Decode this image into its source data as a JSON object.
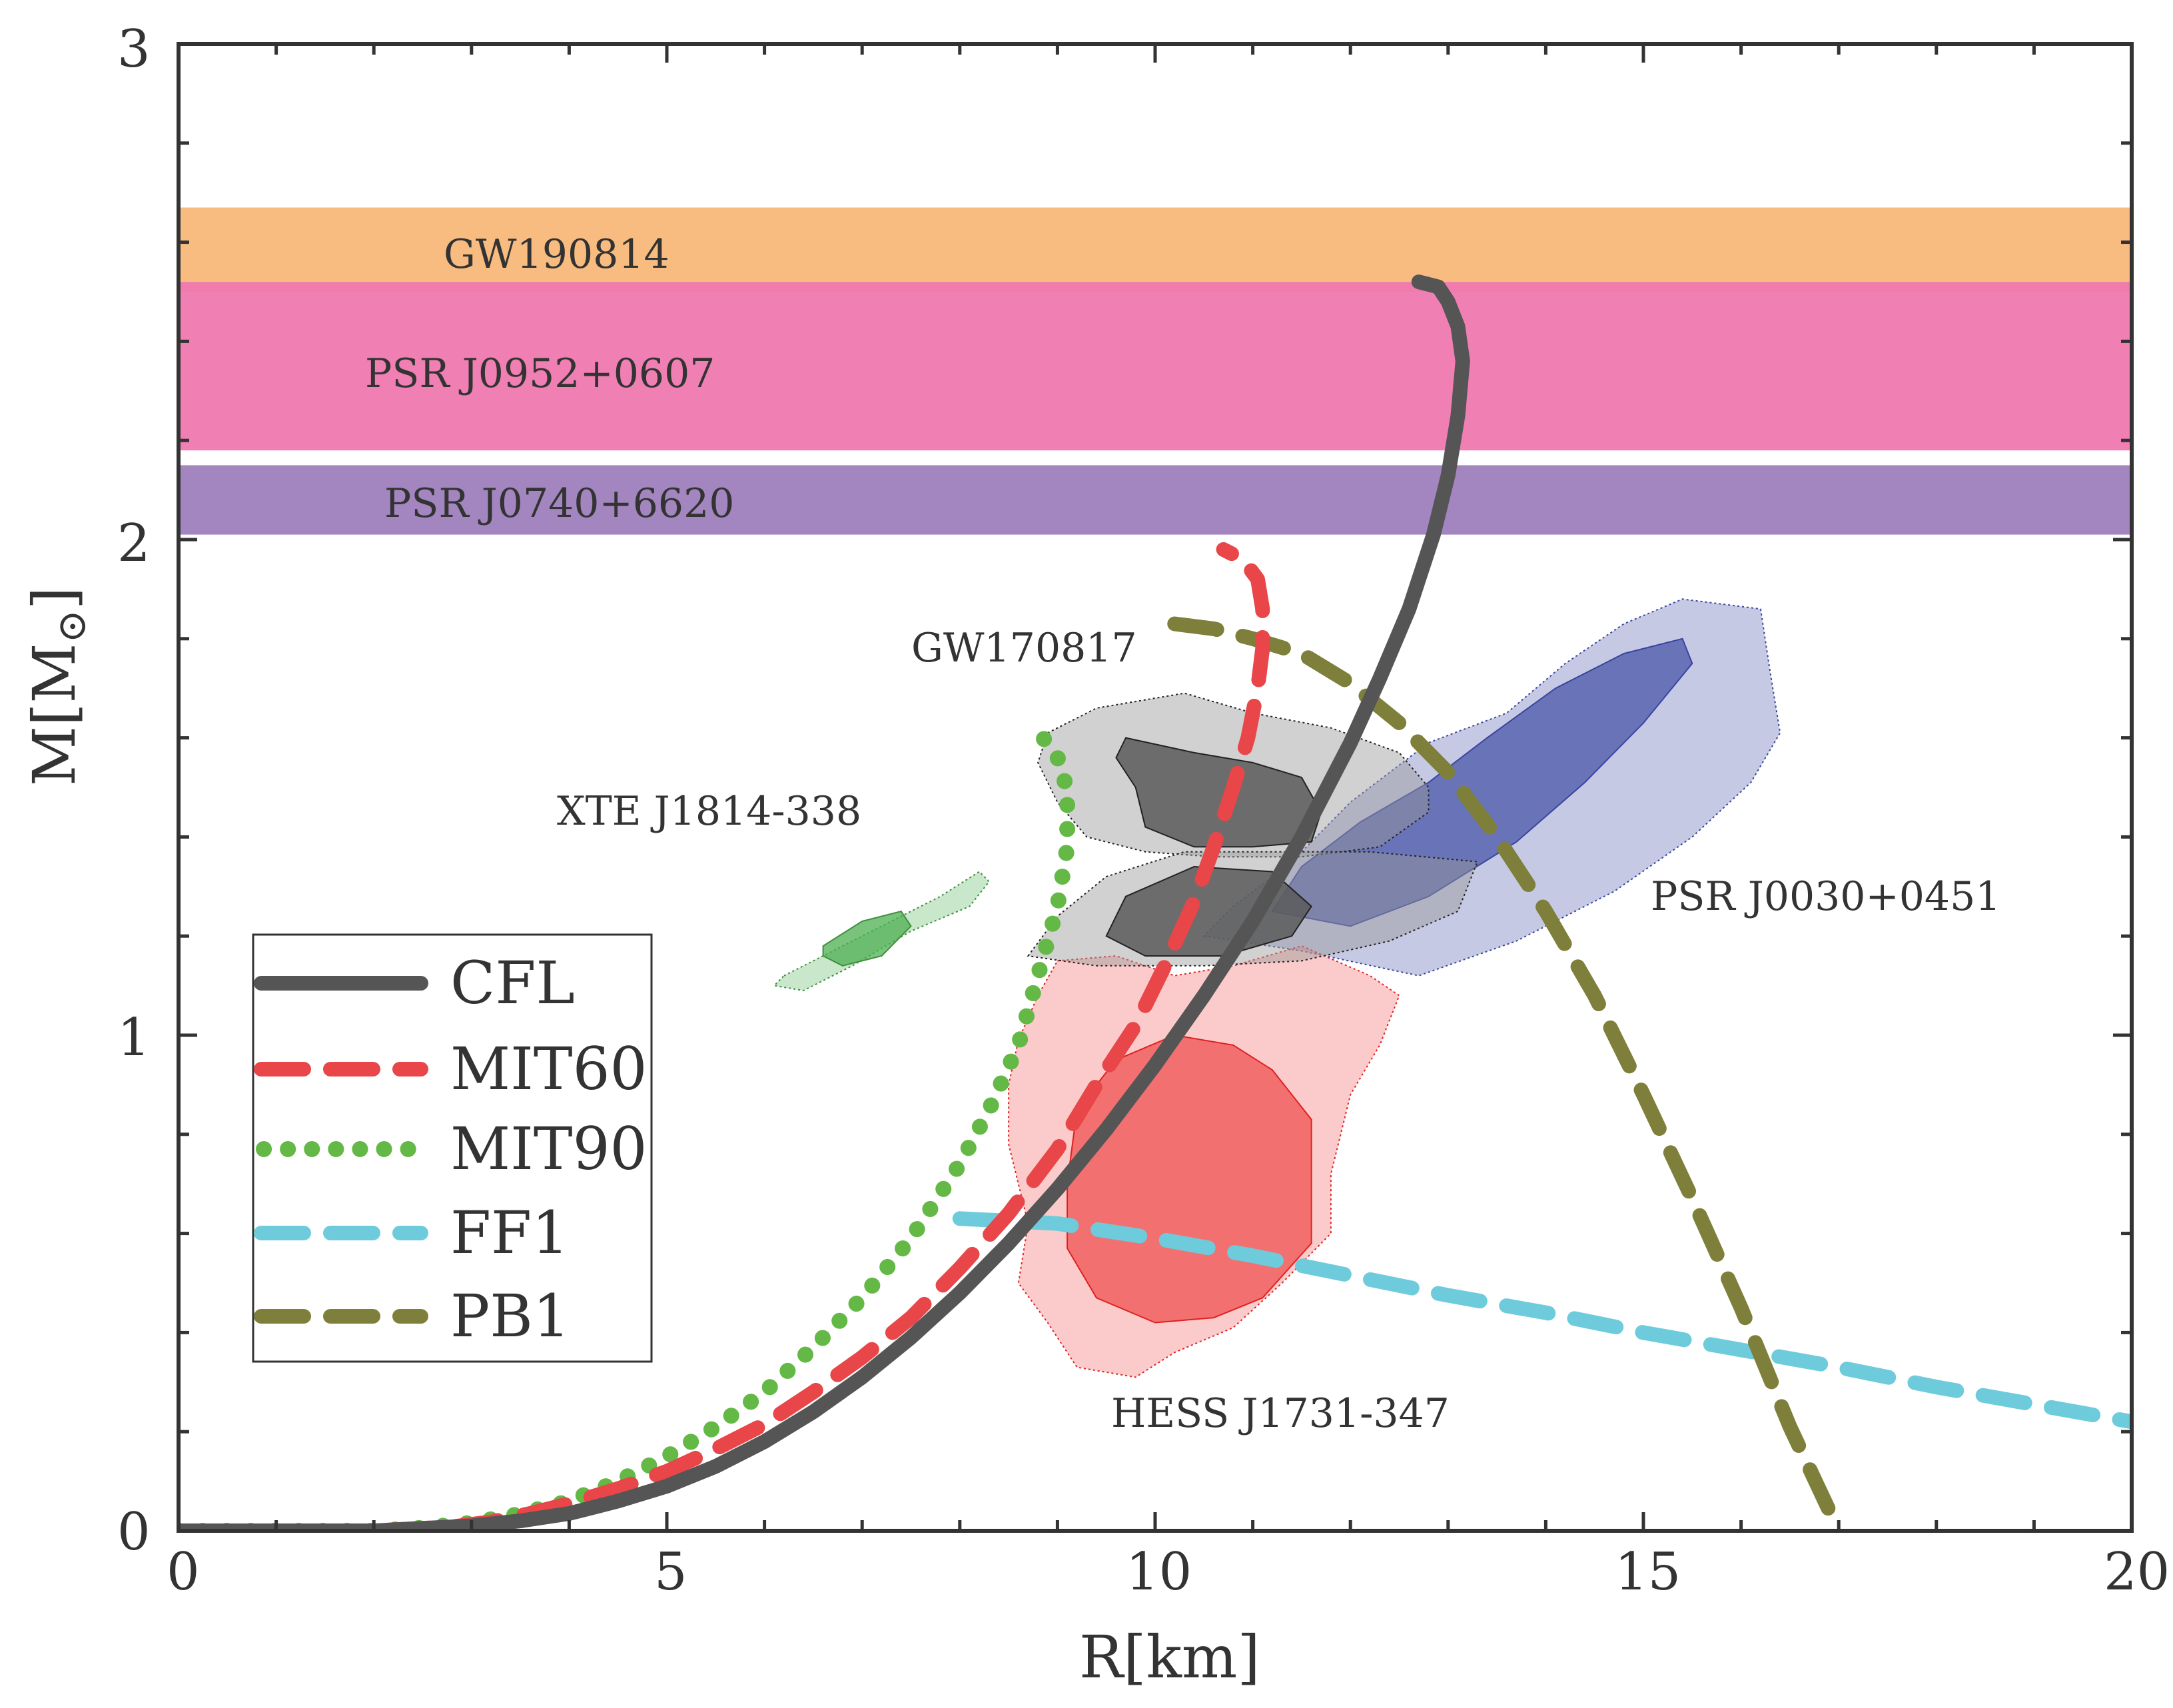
{
  "chart_data": {
    "type": "line",
    "title": "",
    "xlabel": "R[km]",
    "ylabel_main": "M[M",
    "ylabel_sub": "⊙",
    "ylabel_close": "]",
    "xlim": [
      0,
      20
    ],
    "ylim": [
      0,
      3
    ],
    "xticks": [
      0,
      5,
      10,
      15,
      20
    ],
    "yticks": [
      0,
      1,
      2,
      3
    ],
    "grid": false,
    "legend_position": "lower-left",
    "colors": {
      "CFL": "#555555",
      "MIT60": "#e84648",
      "MIT90": "#64b846",
      "FF1": "#6ecbdc",
      "PB1": "#7f7f3c",
      "GW190814": "#f8b87a",
      "PSR_J0952": "#ef78b0",
      "PSR_J0740": "#9e7ebd",
      "GW170817": "#9a9a9a",
      "XTE": "#4caf50",
      "HESS": "#f36b6b",
      "PSR_J0030": "#5a63b0"
    },
    "bands": [
      {
        "name": "GW190814",
        "label": "GW190814",
        "y": [
          2.5,
          2.67
        ],
        "label_pos": [
          2.7,
          2.57
        ]
      },
      {
        "name": "PSR J0952+0607",
        "label": "PSR J0952+0607",
        "y": [
          2.18,
          2.52
        ],
        "label_pos": [
          1.9,
          2.33
        ]
      },
      {
        "name": "PSR J0740+6620",
        "label": "PSR J0740+6620",
        "y": [
          2.01,
          2.15
        ],
        "label_pos": [
          2.1,
          2.07
        ]
      }
    ],
    "regions": [
      {
        "name": "GW170817",
        "label": "GW170817",
        "label_pos": [
          7.5,
          1.77
        ],
        "outer": [
          [
            8.9,
            1.61
          ],
          [
            9.4,
            1.66
          ],
          [
            10.3,
            1.69
          ],
          [
            11.0,
            1.65
          ],
          [
            11.8,
            1.62
          ],
          [
            12.5,
            1.57
          ],
          [
            12.8,
            1.5
          ],
          [
            12.8,
            1.45
          ],
          [
            12.3,
            1.38
          ],
          [
            11.5,
            1.36
          ],
          [
            10.6,
            1.36
          ],
          [
            9.9,
            1.37
          ],
          [
            9.3,
            1.4
          ],
          [
            9.0,
            1.47
          ],
          [
            8.8,
            1.55
          ]
        ],
        "inner": [
          [
            9.7,
            1.6
          ],
          [
            10.4,
            1.57
          ],
          [
            11.0,
            1.55
          ],
          [
            11.5,
            1.52
          ],
          [
            11.7,
            1.45
          ],
          [
            11.6,
            1.39
          ],
          [
            11.0,
            1.38
          ],
          [
            10.4,
            1.38
          ],
          [
            9.9,
            1.42
          ],
          [
            9.8,
            1.5
          ],
          [
            9.6,
            1.56
          ]
        ],
        "outer2": [
          [
            8.7,
            1.16
          ],
          [
            9.0,
            1.24
          ],
          [
            9.5,
            1.32
          ],
          [
            10.3,
            1.37
          ],
          [
            11.2,
            1.37
          ],
          [
            12.2,
            1.37
          ],
          [
            13.3,
            1.35
          ],
          [
            13.1,
            1.25
          ],
          [
            12.4,
            1.19
          ],
          [
            11.5,
            1.15
          ],
          [
            10.5,
            1.14
          ],
          [
            9.4,
            1.14
          ]
        ],
        "inner2": [
          [
            9.7,
            1.28
          ],
          [
            10.4,
            1.34
          ],
          [
            11.2,
            1.33
          ],
          [
            11.6,
            1.26
          ],
          [
            11.4,
            1.2
          ],
          [
            10.7,
            1.16
          ],
          [
            9.9,
            1.16
          ],
          [
            9.5,
            1.2
          ]
        ]
      },
      {
        "name": "XTE J1814-338",
        "label": "XTE J1814-338",
        "label_pos": [
          4.0,
          1.45
        ],
        "outer": [
          [
            6.2,
            1.12
          ],
          [
            6.6,
            1.16
          ],
          [
            7.2,
            1.22
          ],
          [
            7.8,
            1.28
          ],
          [
            8.2,
            1.33
          ],
          [
            8.3,
            1.31
          ],
          [
            8.1,
            1.26
          ],
          [
            7.5,
            1.21
          ],
          [
            6.9,
            1.14
          ],
          [
            6.4,
            1.09
          ],
          [
            6.1,
            1.1
          ]
        ],
        "inner": [
          [
            6.6,
            1.18
          ],
          [
            7.0,
            1.23
          ],
          [
            7.4,
            1.25
          ],
          [
            7.5,
            1.22
          ],
          [
            7.2,
            1.16
          ],
          [
            6.8,
            1.14
          ],
          [
            6.6,
            1.16
          ]
        ]
      },
      {
        "name": "HESS J1731-347",
        "label": "HESS J1731-347",
        "label_pos": [
          9.7,
          0.24
        ],
        "outer": [
          [
            9.0,
            1.15
          ],
          [
            9.6,
            1.16
          ],
          [
            10.2,
            1.12
          ],
          [
            10.8,
            1.14
          ],
          [
            11.5,
            1.18
          ],
          [
            12.2,
            1.12
          ],
          [
            12.5,
            1.08
          ],
          [
            12.3,
            0.98
          ],
          [
            12.0,
            0.88
          ],
          [
            11.8,
            0.72
          ],
          [
            11.8,
            0.6
          ],
          [
            11.3,
            0.5
          ],
          [
            10.8,
            0.41
          ],
          [
            10.2,
            0.36
          ],
          [
            9.8,
            0.31
          ],
          [
            9.2,
            0.33
          ],
          [
            8.9,
            0.42
          ],
          [
            8.6,
            0.5
          ],
          [
            8.7,
            0.62
          ],
          [
            8.5,
            0.78
          ],
          [
            8.5,
            0.9
          ],
          [
            8.6,
            0.99
          ],
          [
            8.8,
            1.08
          ]
        ],
        "inner": [
          [
            9.6,
            0.95
          ],
          [
            10.2,
            1.0
          ],
          [
            10.8,
            0.98
          ],
          [
            11.2,
            0.93
          ],
          [
            11.6,
            0.83
          ],
          [
            11.6,
            0.7
          ],
          [
            11.6,
            0.58
          ],
          [
            11.1,
            0.47
          ],
          [
            10.6,
            0.43
          ],
          [
            10.0,
            0.42
          ],
          [
            9.4,
            0.47
          ],
          [
            9.1,
            0.57
          ],
          [
            9.1,
            0.7
          ],
          [
            9.2,
            0.85
          ]
        ]
      },
      {
        "name": "PSR J0030+0451",
        "label": "PSR J0030+0451",
        "label_pos": [
          15.1,
          1.26
        ],
        "outer": [
          [
            10.5,
            1.2
          ],
          [
            11.5,
            1.17
          ],
          [
            12.7,
            1.12
          ],
          [
            13.7,
            1.19
          ],
          [
            14.7,
            1.29
          ],
          [
            15.5,
            1.4
          ],
          [
            16.1,
            1.51
          ],
          [
            16.4,
            1.61
          ],
          [
            16.3,
            1.73
          ],
          [
            16.2,
            1.86
          ],
          [
            15.4,
            1.88
          ],
          [
            14.8,
            1.83
          ],
          [
            14.2,
            1.75
          ],
          [
            13.6,
            1.65
          ],
          [
            12.8,
            1.59
          ],
          [
            12.0,
            1.47
          ],
          [
            11.4,
            1.35
          ],
          [
            10.8,
            1.26
          ]
        ],
        "inner": [
          [
            11.2,
            1.25
          ],
          [
            12.0,
            1.22
          ],
          [
            12.8,
            1.28
          ],
          [
            13.7,
            1.39
          ],
          [
            14.4,
            1.51
          ],
          [
            15.0,
            1.63
          ],
          [
            15.5,
            1.75
          ],
          [
            15.4,
            1.8
          ],
          [
            14.8,
            1.77
          ],
          [
            14.1,
            1.7
          ],
          [
            13.4,
            1.6
          ],
          [
            12.8,
            1.51
          ],
          [
            12.1,
            1.43
          ],
          [
            11.5,
            1.34
          ]
        ]
      }
    ],
    "series": [
      {
        "name": "CFL",
        "label": "CFL",
        "style": "solid",
        "x": [
          0.0,
          1.0,
          2.0,
          3.0,
          3.5,
          4.0,
          4.5,
          5.0,
          5.5,
          6.0,
          6.5,
          7.0,
          7.5,
          8.0,
          8.5,
          9.0,
          9.5,
          10.0,
          10.5,
          11.0,
          11.5,
          12.0,
          12.3,
          12.6,
          12.85,
          13.0,
          13.1,
          13.15,
          13.1,
          13.0,
          12.9,
          12.7
        ],
        "y": [
          0.0,
          0.0,
          0.0,
          0.01,
          0.02,
          0.035,
          0.06,
          0.09,
          0.13,
          0.18,
          0.24,
          0.31,
          0.39,
          0.48,
          0.58,
          0.69,
          0.81,
          0.94,
          1.08,
          1.23,
          1.4,
          1.59,
          1.72,
          1.86,
          2.01,
          2.13,
          2.25,
          2.36,
          2.43,
          2.48,
          2.51,
          2.52
        ]
      },
      {
        "name": "MIT60",
        "label": "MIT60",
        "style": "dashed",
        "x": [
          0.0,
          1.0,
          2.0,
          2.8,
          3.2,
          3.6,
          4.0,
          4.5,
          5.0,
          5.5,
          6.0,
          6.5,
          7.0,
          7.5,
          8.0,
          8.5,
          9.0,
          9.4,
          9.8,
          10.1,
          10.4,
          10.6,
          10.8,
          10.95,
          11.05,
          11.1,
          11.1,
          11.05,
          10.9,
          10.7
        ],
        "y": [
          0.0,
          0.0,
          0.0,
          0.008,
          0.018,
          0.035,
          0.055,
          0.085,
          0.12,
          0.165,
          0.215,
          0.28,
          0.35,
          0.43,
          0.53,
          0.64,
          0.77,
          0.9,
          1.02,
          1.14,
          1.27,
          1.38,
          1.5,
          1.6,
          1.7,
          1.78,
          1.86,
          1.92,
          1.96,
          1.98
        ]
      },
      {
        "name": "MIT90",
        "label": "MIT90",
        "style": "dotted",
        "x": [
          0.0,
          1.0,
          2.0,
          2.5,
          3.0,
          3.5,
          4.0,
          4.5,
          5.0,
          5.5,
          6.0,
          6.5,
          7.0,
          7.5,
          8.0,
          8.3,
          8.6,
          8.8,
          9.0,
          9.1,
          9.1,
          9.05,
          8.95,
          8.85
        ],
        "y": [
          0.0,
          0.0,
          0.0,
          0.006,
          0.016,
          0.034,
          0.06,
          0.1,
          0.15,
          0.21,
          0.28,
          0.37,
          0.47,
          0.59,
          0.74,
          0.85,
          0.98,
          1.12,
          1.26,
          1.38,
          1.48,
          1.54,
          1.58,
          1.6
        ]
      },
      {
        "name": "FF1",
        "label": "FF1",
        "style": "dashed",
        "x": [
          8.0,
          9.0,
          10.0,
          11.0,
          12.0,
          13.0,
          14.0,
          15.0,
          16.0,
          17.0,
          18.0,
          19.0,
          20.0
        ],
        "y": [
          0.63,
          0.62,
          0.59,
          0.555,
          0.515,
          0.475,
          0.44,
          0.4,
          0.365,
          0.33,
          0.29,
          0.255,
          0.22
        ]
      },
      {
        "name": "PB1",
        "label": "PB1",
        "style": "dashed",
        "x": [
          10.2,
          10.6,
          11.0,
          11.5,
          12.0,
          12.5,
          13.0,
          13.5,
          14.0,
          14.5,
          15.0,
          15.5,
          16.0,
          16.5,
          17.0
        ],
        "y": [
          1.83,
          1.82,
          1.8,
          1.77,
          1.71,
          1.63,
          1.53,
          1.4,
          1.25,
          1.08,
          0.88,
          0.67,
          0.45,
          0.21,
          0.0
        ]
      }
    ]
  }
}
